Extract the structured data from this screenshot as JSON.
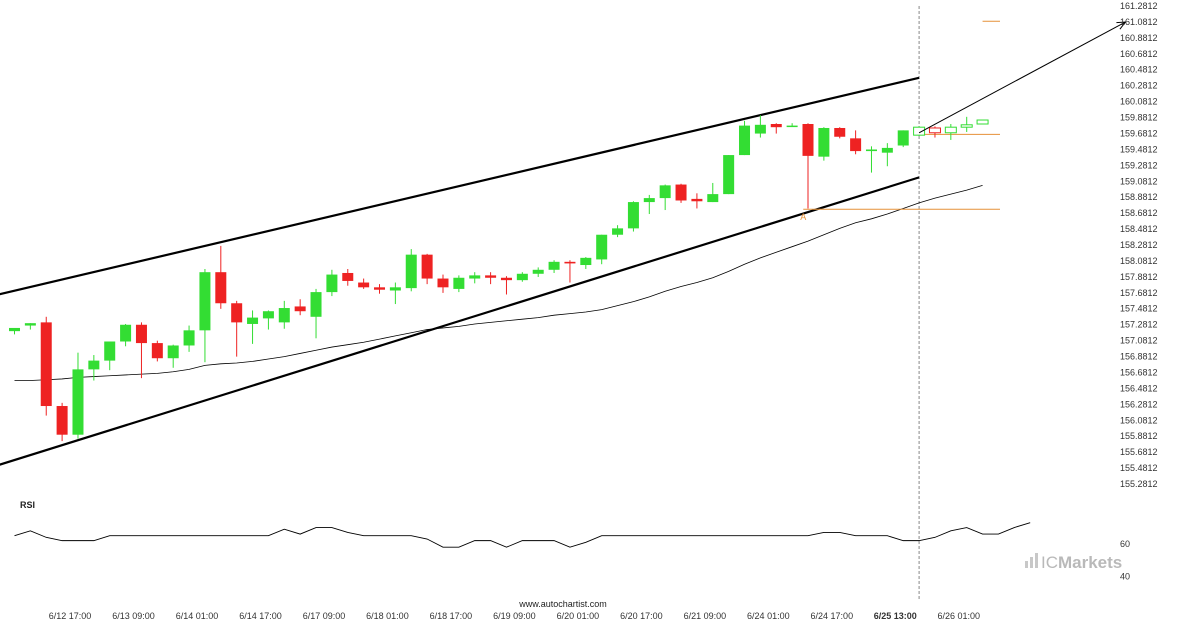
{
  "chart_data": {
    "type": "candlestick",
    "title": "",
    "source": "www.autochartist.com",
    "brand": {
      "prefix": "IC",
      "suffix": "Markets"
    },
    "colors": {
      "up": "#33dd33",
      "down": "#ee2222",
      "projection_up": "#33dd33",
      "projection_down": "#ee2222",
      "level_line": "#e69138",
      "channel": "#000000",
      "ma": "#000000",
      "rsi": "#000000",
      "vline": "#888888"
    },
    "y_axis": {
      "min": 155.2812,
      "max": 161.2812,
      "tick_labels": [
        "161.2812",
        "161.0812",
        "160.8812",
        "160.6812",
        "160.4812",
        "160.2812",
        "160.0812",
        "159.8812",
        "159.6812",
        "159.4812",
        "159.2812",
        "159.0812",
        "158.8812",
        "158.6812",
        "158.4812",
        "158.2812",
        "158.0812",
        "157.8812",
        "157.6812",
        "157.4812",
        "157.2812",
        "157.0812",
        "156.8812",
        "156.6812",
        "156.4812",
        "156.2812",
        "156.0812",
        "155.8812",
        "155.6812",
        "155.4812",
        "155.2812"
      ]
    },
    "x_axis": {
      "tick_labels": [
        {
          "label": "6/12 17:00",
          "index": 3.5
        },
        {
          "label": "6/13 09:00",
          "index": 7.5
        },
        {
          "label": "6/14 01:00",
          "index": 11.5
        },
        {
          "label": "6/14 17:00",
          "index": 15.5
        },
        {
          "label": "6/17 09:00",
          "index": 19.5
        },
        {
          "label": "6/18 01:00",
          "index": 23.5
        },
        {
          "label": "6/18 17:00",
          "index": 27.5
        },
        {
          "label": "6/19 09:00",
          "index": 31.5
        },
        {
          "label": "6/20 01:00",
          "index": 35.5
        },
        {
          "label": "6/20 17:00",
          "index": 39.5
        },
        {
          "label": "6/21 09:00",
          "index": 43.5
        },
        {
          "label": "6/24 01:00",
          "index": 47.5
        },
        {
          "label": "6/24 17:00",
          "index": 51.5
        },
        {
          "label": "6/25 13:00",
          "index": 55.5,
          "bold": true
        },
        {
          "label": "6/26 01:00",
          "index": 59.5
        }
      ]
    },
    "candles": [
      {
        "o": 157.2,
        "h": 157.24,
        "l": 157.16,
        "c": 157.24
      },
      {
        "o": 157.27,
        "h": 157.3,
        "l": 157.22,
        "c": 157.3
      },
      {
        "o": 157.31,
        "h": 157.38,
        "l": 156.14,
        "c": 156.26
      },
      {
        "o": 156.26,
        "h": 156.3,
        "l": 155.82,
        "c": 155.9
      },
      {
        "o": 155.9,
        "h": 156.93,
        "l": 155.85,
        "c": 156.72
      },
      {
        "o": 156.72,
        "h": 156.9,
        "l": 156.58,
        "c": 156.83
      },
      {
        "o": 156.83,
        "h": 157.05,
        "l": 156.71,
        "c": 157.07
      },
      {
        "o": 157.07,
        "h": 157.29,
        "l": 157.01,
        "c": 157.28
      },
      {
        "o": 157.28,
        "h": 157.31,
        "l": 156.61,
        "c": 157.05
      },
      {
        "o": 157.05,
        "h": 157.08,
        "l": 156.82,
        "c": 156.86
      },
      {
        "o": 156.86,
        "h": 157.03,
        "l": 156.74,
        "c": 157.02
      },
      {
        "o": 157.02,
        "h": 157.27,
        "l": 156.94,
        "c": 157.21
      },
      {
        "o": 157.21,
        "h": 157.98,
        "l": 156.81,
        "c": 157.94
      },
      {
        "o": 157.94,
        "h": 158.27,
        "l": 157.48,
        "c": 157.55
      },
      {
        "o": 157.55,
        "h": 157.58,
        "l": 156.88,
        "c": 157.31
      },
      {
        "o": 157.29,
        "h": 157.46,
        "l": 157.04,
        "c": 157.37
      },
      {
        "o": 157.36,
        "h": 157.46,
        "l": 157.22,
        "c": 157.45
      },
      {
        "o": 157.31,
        "h": 157.58,
        "l": 157.23,
        "c": 157.49
      },
      {
        "o": 157.51,
        "h": 157.6,
        "l": 157.4,
        "c": 157.45
      },
      {
        "o": 157.38,
        "h": 157.73,
        "l": 157.11,
        "c": 157.69
      },
      {
        "o": 157.69,
        "h": 157.97,
        "l": 157.64,
        "c": 157.91
      },
      {
        "o": 157.93,
        "h": 157.98,
        "l": 157.77,
        "c": 157.83
      },
      {
        "o": 157.81,
        "h": 157.86,
        "l": 157.73,
        "c": 157.75
      },
      {
        "o": 157.75,
        "h": 157.79,
        "l": 157.67,
        "c": 157.72
      },
      {
        "o": 157.71,
        "h": 157.81,
        "l": 157.54,
        "c": 157.75
      },
      {
        "o": 157.74,
        "h": 158.23,
        "l": 157.7,
        "c": 158.16
      },
      {
        "o": 158.16,
        "h": 158.17,
        "l": 157.79,
        "c": 157.86
      },
      {
        "o": 157.86,
        "h": 157.91,
        "l": 157.68,
        "c": 157.75
      },
      {
        "o": 157.73,
        "h": 157.9,
        "l": 157.69,
        "c": 157.87
      },
      {
        "o": 157.86,
        "h": 157.94,
        "l": 157.8,
        "c": 157.9
      },
      {
        "o": 157.9,
        "h": 157.94,
        "l": 157.79,
        "c": 157.87
      },
      {
        "o": 157.87,
        "h": 157.89,
        "l": 157.66,
        "c": 157.84
      },
      {
        "o": 157.84,
        "h": 157.94,
        "l": 157.82,
        "c": 157.92
      },
      {
        "o": 157.92,
        "h": 158.0,
        "l": 157.88,
        "c": 157.97
      },
      {
        "o": 157.97,
        "h": 158.09,
        "l": 157.93,
        "c": 158.07
      },
      {
        "o": 158.07,
        "h": 158.09,
        "l": 157.81,
        "c": 158.05
      },
      {
        "o": 158.03,
        "h": 158.13,
        "l": 157.98,
        "c": 158.12
      },
      {
        "o": 158.1,
        "h": 158.41,
        "l": 158.04,
        "c": 158.41
      },
      {
        "o": 158.41,
        "h": 158.53,
        "l": 158.38,
        "c": 158.49
      },
      {
        "o": 158.49,
        "h": 158.83,
        "l": 158.45,
        "c": 158.82
      },
      {
        "o": 158.82,
        "h": 158.91,
        "l": 158.67,
        "c": 158.87
      },
      {
        "o": 158.87,
        "h": 159.04,
        "l": 158.72,
        "c": 159.03
      },
      {
        "o": 159.04,
        "h": 159.05,
        "l": 158.81,
        "c": 158.84
      },
      {
        "o": 158.86,
        "h": 158.93,
        "l": 158.74,
        "c": 158.83
      },
      {
        "o": 158.82,
        "h": 159.06,
        "l": 158.82,
        "c": 158.92
      },
      {
        "o": 158.92,
        "h": 159.41,
        "l": 158.92,
        "c": 159.41
      },
      {
        "o": 159.41,
        "h": 159.84,
        "l": 159.41,
        "c": 159.78
      },
      {
        "o": 159.68,
        "h": 159.91,
        "l": 159.63,
        "c": 159.79
      },
      {
        "o": 159.8,
        "h": 159.81,
        "l": 159.68,
        "c": 159.76
      },
      {
        "o": 159.78,
        "h": 159.81,
        "l": 159.77,
        "c": 159.78
      },
      {
        "o": 159.8,
        "h": 159.81,
        "l": 158.74,
        "c": 159.4
      },
      {
        "o": 159.39,
        "h": 159.76,
        "l": 159.34,
        "c": 159.75
      },
      {
        "o": 159.75,
        "h": 159.76,
        "l": 159.62,
        "c": 159.64
      },
      {
        "o": 159.62,
        "h": 159.72,
        "l": 159.42,
        "c": 159.46
      },
      {
        "o": 159.46,
        "h": 159.52,
        "l": 159.19,
        "c": 159.48
      },
      {
        "o": 159.44,
        "h": 159.56,
        "l": 159.27,
        "c": 159.5
      },
      {
        "o": 159.53,
        "h": 159.72,
        "l": 159.51,
        "c": 159.72
      }
    ],
    "projection_candles": [
      {
        "o": 159.66,
        "h": 159.77,
        "l": 159.65,
        "c": 159.76
      },
      {
        "o": 159.75,
        "h": 159.77,
        "l": 159.63,
        "c": 159.69
      },
      {
        "o": 159.69,
        "h": 159.8,
        "l": 159.6,
        "c": 159.76
      },
      {
        "o": 159.76,
        "h": 159.89,
        "l": 159.7,
        "c": 159.79
      },
      {
        "o": 159.8,
        "h": 159.85,
        "l": 159.8,
        "c": 159.85
      }
    ],
    "projection_start_index": 57,
    "moving_average": [
      156.58,
      156.58,
      156.59,
      156.6,
      156.62,
      156.63,
      156.64,
      156.65,
      156.66,
      156.67,
      156.69,
      156.72,
      156.77,
      156.79,
      156.8,
      156.82,
      156.85,
      156.88,
      156.92,
      156.96,
      157.0,
      157.03,
      157.06,
      157.1,
      157.14,
      157.18,
      157.22,
      157.24,
      157.26,
      157.29,
      157.31,
      157.33,
      157.35,
      157.37,
      157.4,
      157.42,
      157.44,
      157.47,
      157.52,
      157.57,
      157.63,
      157.7,
      157.76,
      157.81,
      157.87,
      157.95,
      158.04,
      158.12,
      158.19,
      158.26,
      158.33,
      158.41,
      158.49,
      158.56,
      158.61,
      158.67,
      158.74,
      158.81,
      158.87,
      158.92,
      158.97,
      159.03
    ],
    "channel": {
      "upper": [
        {
          "x": -1.0,
          "y": 157.66
        },
        {
          "x": 57.0,
          "y": 160.38
        }
      ],
      "lower": [
        {
          "x": -1.0,
          "y": 155.52
        },
        {
          "x": 57.0,
          "y": 159.13
        }
      ]
    },
    "levels": [
      {
        "value": 161.09,
        "from_index": 61
      },
      {
        "value": 159.67,
        "from_index": 57
      },
      {
        "value": 158.73,
        "from_index": 49.7
      }
    ],
    "pivot_label": {
      "text": "A",
      "index": 49.7,
      "value": 158.73
    },
    "forecast_arrow": {
      "from": {
        "x": 57.0,
        "y": 159.69
      },
      "to": {
        "x": 70.0,
        "y": 161.08
      }
    },
    "vline_index": 57,
    "rsi": {
      "title": "RSI",
      "tick_labels": [
        {
          "label": "60",
          "value": 60
        },
        {
          "label": "40",
          "value": 40
        }
      ],
      "ymin": 30,
      "ymax": 85,
      "values": [
        65,
        68,
        64,
        62,
        62,
        62,
        65,
        65,
        65,
        65,
        65,
        65,
        65,
        65,
        65,
        65,
        65,
        69,
        66,
        70,
        70,
        67,
        65,
        65,
        65,
        65,
        63,
        58,
        58,
        62,
        62,
        58,
        62,
        62,
        62,
        58,
        61,
        65,
        65,
        65,
        65,
        65,
        65,
        65,
        65,
        65,
        65,
        65,
        65,
        65,
        65,
        67,
        67,
        65,
        65,
        65,
        62,
        62,
        64,
        68,
        70,
        66,
        66,
        70,
        73
      ]
    }
  }
}
